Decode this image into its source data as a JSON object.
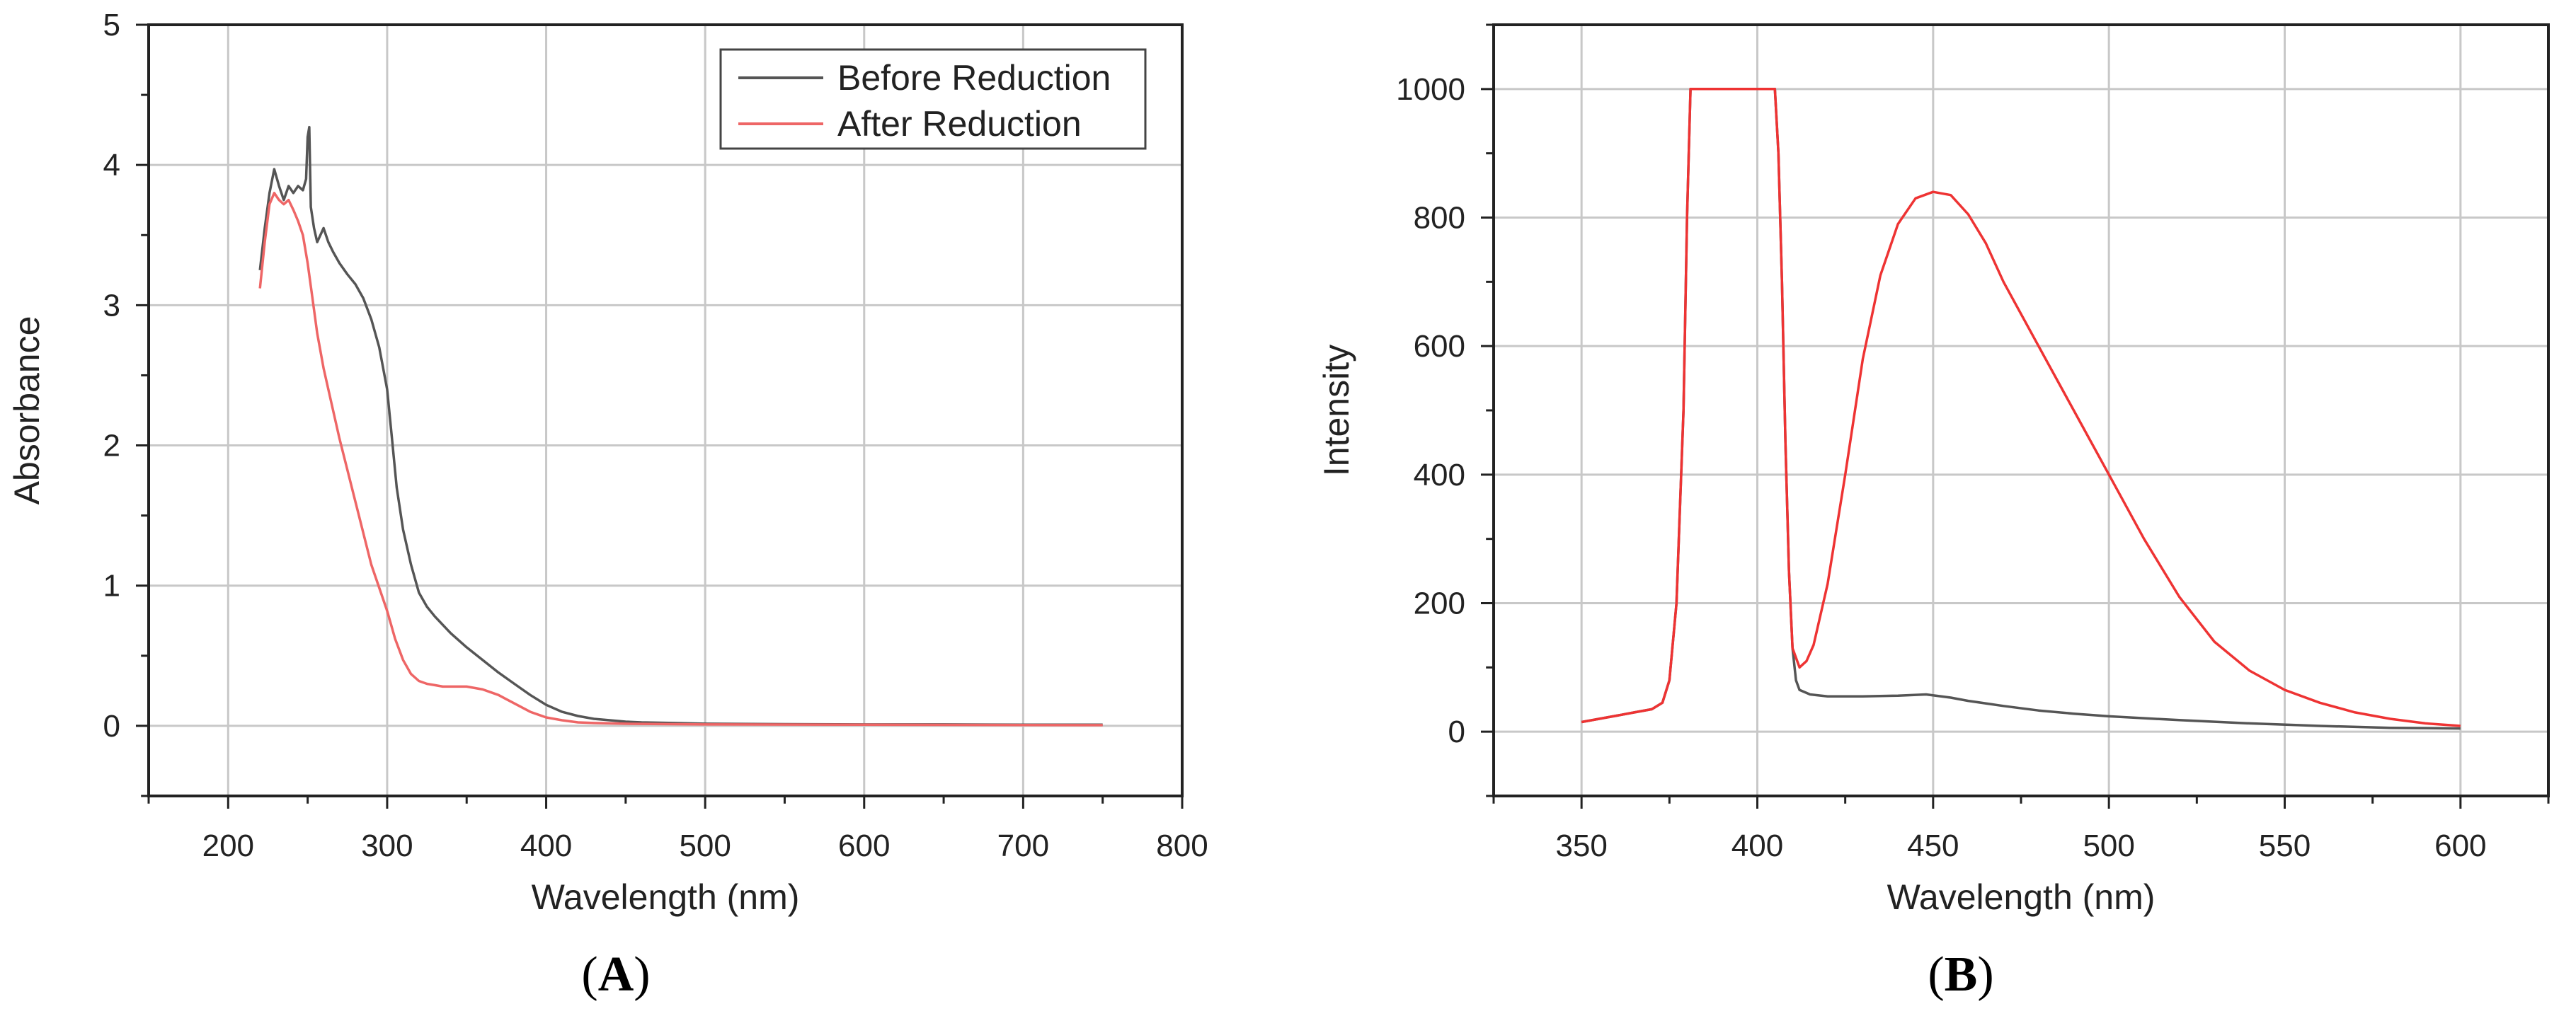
{
  "panels": [
    {
      "label": "A"
    },
    {
      "label": "B"
    }
  ],
  "chart_data": [
    {
      "type": "line",
      "panel": "A",
      "title": "",
      "xlabel": "Wavelength (nm)",
      "ylabel": "Absorbance",
      "xlim": [
        150,
        800
      ],
      "ylim": [
        -0.5,
        5
      ],
      "xticks": [
        200,
        300,
        400,
        500,
        600,
        700,
        800
      ],
      "yticks": [
        0,
        1,
        2,
        3,
        4,
        5
      ],
      "grid": true,
      "legend_position": "top-right",
      "series": [
        {
          "name": "Before Reduction",
          "color": "#555555",
          "x": [
            220,
            223,
            226,
            229,
            232,
            235,
            238,
            241,
            244,
            247,
            249,
            250,
            251,
            252,
            254,
            256,
            258,
            260,
            263,
            266,
            270,
            275,
            280,
            285,
            290,
            295,
            300,
            303,
            306,
            310,
            315,
            320,
            325,
            330,
            340,
            350,
            360,
            370,
            380,
            390,
            400,
            410,
            420,
            430,
            440,
            450,
            460,
            480,
            500,
            550,
            600,
            650,
            700,
            750
          ],
          "y": [
            3.25,
            3.55,
            3.8,
            3.97,
            3.85,
            3.75,
            3.85,
            3.8,
            3.85,
            3.82,
            3.9,
            4.2,
            4.27,
            3.7,
            3.55,
            3.45,
            3.5,
            3.55,
            3.45,
            3.38,
            3.3,
            3.22,
            3.15,
            3.05,
            2.9,
            2.7,
            2.4,
            2.05,
            1.7,
            1.4,
            1.15,
            0.95,
            0.85,
            0.78,
            0.66,
            0.56,
            0.47,
            0.38,
            0.3,
            0.22,
            0.15,
            0.1,
            0.07,
            0.05,
            0.04,
            0.03,
            0.025,
            0.02,
            0.015,
            0.012,
            0.01,
            0.01,
            0.008,
            0.008
          ]
        },
        {
          "name": "After Reduction",
          "color": "#ee6666",
          "x": [
            220,
            223,
            226,
            229,
            232,
            235,
            238,
            241,
            244,
            247,
            250,
            253,
            256,
            260,
            265,
            270,
            280,
            290,
            300,
            305,
            310,
            315,
            320,
            325,
            330,
            335,
            340,
            345,
            350,
            355,
            360,
            365,
            370,
            375,
            380,
            390,
            400,
            410,
            420,
            430,
            450,
            500,
            600,
            700,
            750
          ],
          "y": [
            3.12,
            3.45,
            3.72,
            3.8,
            3.75,
            3.72,
            3.75,
            3.68,
            3.6,
            3.5,
            3.3,
            3.05,
            2.8,
            2.55,
            2.3,
            2.05,
            1.6,
            1.15,
            0.82,
            0.62,
            0.47,
            0.37,
            0.32,
            0.3,
            0.29,
            0.28,
            0.28,
            0.28,
            0.28,
            0.27,
            0.26,
            0.24,
            0.22,
            0.19,
            0.16,
            0.1,
            0.06,
            0.04,
            0.025,
            0.02,
            0.015,
            0.01,
            0.008,
            0.006,
            0.005
          ]
        }
      ]
    },
    {
      "type": "line",
      "panel": "B",
      "title": "",
      "xlabel": "Wavelength (nm)",
      "ylabel": "Intensity",
      "xlim": [
        325,
        625
      ],
      "ylim": [
        -100,
        1100
      ],
      "xticks": [
        350,
        400,
        450,
        500,
        550,
        600
      ],
      "yticks": [
        0,
        200,
        400,
        600,
        800,
        1000
      ],
      "grid": true,
      "series": [
        {
          "name": "",
          "color": "#555555",
          "x": [
            350,
            355,
            360,
            365,
            370,
            373,
            375,
            377,
            379,
            380,
            381,
            390,
            400,
            405,
            406,
            407,
            408,
            409,
            410,
            411,
            412,
            415,
            420,
            430,
            440,
            448,
            455,
            460,
            470,
            480,
            490,
            500,
            520,
            540,
            560,
            580,
            600
          ],
          "y": [
            15,
            20,
            25,
            30,
            35,
            45,
            80,
            200,
            500,
            800,
            1000,
            1000,
            1000,
            1000,
            900,
            700,
            450,
            250,
            130,
            80,
            65,
            58,
            55,
            55,
            56,
            58,
            53,
            48,
            40,
            33,
            28,
            24,
            18,
            13,
            9,
            6,
            5
          ]
        },
        {
          "name": "",
          "color": "#ee3333",
          "x": [
            350,
            355,
            360,
            365,
            370,
            373,
            375,
            377,
            379,
            380,
            381,
            390,
            400,
            405,
            406,
            407,
            408,
            409,
            410,
            412,
            414,
            416,
            420,
            425,
            430,
            435,
            440,
            445,
            450,
            455,
            460,
            465,
            470,
            480,
            490,
            500,
            510,
            520,
            530,
            540,
            550,
            560,
            570,
            580,
            590,
            600
          ],
          "y": [
            15,
            20,
            25,
            30,
            35,
            45,
            80,
            200,
            500,
            800,
            1000,
            1000,
            1000,
            1000,
            900,
            700,
            450,
            250,
            130,
            100,
            110,
            135,
            230,
            400,
            580,
            710,
            790,
            830,
            840,
            835,
            805,
            760,
            700,
            600,
            500,
            400,
            300,
            210,
            140,
            95,
            65,
            45,
            30,
            20,
            13,
            9
          ]
        }
      ]
    }
  ]
}
